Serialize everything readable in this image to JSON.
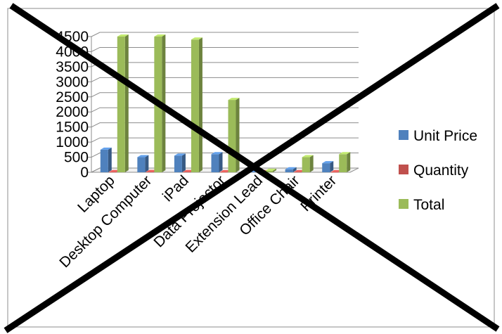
{
  "colors": {
    "unit_price": "#4F81BD",
    "quantity": "#C0504D",
    "total": "#9BBB59",
    "cross": "#000000"
  },
  "chart_data": {
    "type": "bar",
    "style": "3d-clustered-column",
    "categories": [
      "Laptop",
      "Desktop Computer",
      "iPad",
      "Data Projector",
      "Extension Lead",
      "Office Chair",
      "Printer"
    ],
    "series": [
      {
        "name": "Unit Price",
        "values": [
          750,
          500,
          550,
          600,
          10,
          100,
          300
        ]
      },
      {
        "name": "Quantity",
        "values": [
          6,
          9,
          8,
          4,
          5,
          5,
          2
        ]
      },
      {
        "name": "Total",
        "values": [
          4500,
          4500,
          4400,
          2400,
          50,
          500,
          600
        ]
      }
    ],
    "y_ticks": [
      "0",
      "500",
      "1000",
      "1500",
      "2000",
      "2500",
      "3000",
      "3500",
      "4000",
      "4500"
    ],
    "ylim": [
      0,
      4500
    ],
    "grid": true,
    "legend_position": "right",
    "overlay": "large-x-cross"
  }
}
